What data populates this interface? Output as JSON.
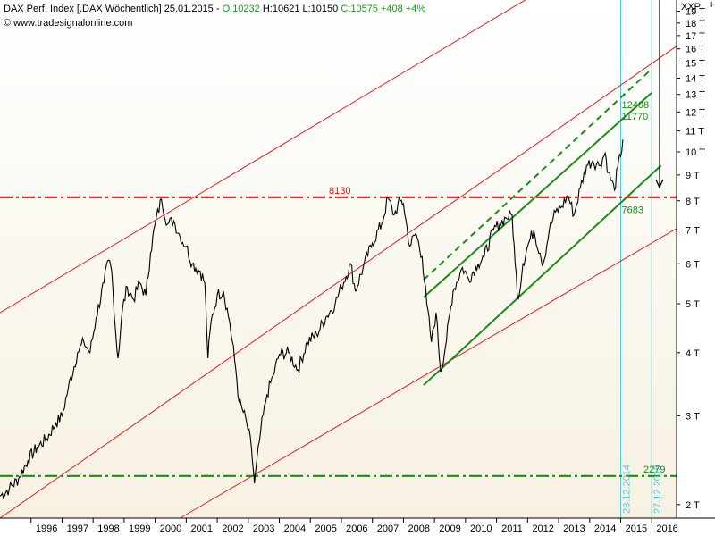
{
  "header": {
    "name": "DAX Perf. Index [.DAX  Wöchentlich] 25.01.2015 - ",
    "open": "O:10232",
    "high": "H:10621",
    "low": "L:10150",
    "close": "C:10575 +408 +4%",
    "source": "© www.tradesignalonline.com",
    "symbol": "XXP"
  },
  "colors": {
    "price": "#000000",
    "channel_outer": "#e02020",
    "resistance": "#e01010",
    "trend": "#1a8c1a",
    "support": "#1a8c1a",
    "vline": "#55c8d8"
  },
  "chart_data": {
    "type": "line",
    "title": "DAX Perf. Index [.DAX Wöchentlich]",
    "xlabel": "",
    "ylabel": "",
    "y_scale": "log",
    "xlim": [
      1995.0,
      2016.8
    ],
    "ylim": [
      1880,
      20000
    ],
    "x_ticks": [
      "1996",
      "1997",
      "1998",
      "1999",
      "2000",
      "2001",
      "2002",
      "2003",
      "2004",
      "2005",
      "2006",
      "2007",
      "2008",
      "2009",
      "2010",
      "2011",
      "2012",
      "2013",
      "2014",
      "2015",
      "2016"
    ],
    "y_ticks": [
      {
        "v": 19000,
        "label": "19 T"
      },
      {
        "v": 18000,
        "label": "18 T"
      },
      {
        "v": 17000,
        "label": "17 T"
      },
      {
        "v": 16000,
        "label": "16 T"
      },
      {
        "v": 15000,
        "label": "15 T"
      },
      {
        "v": 14000,
        "label": "14 T"
      },
      {
        "v": 13000,
        "label": "13 T"
      },
      {
        "v": 12000,
        "label": "12 T"
      },
      {
        "v": 11000,
        "label": "11 T"
      },
      {
        "v": 10000,
        "label": "10 T"
      },
      {
        "v": 9000,
        "label": "9 T"
      },
      {
        "v": 8000,
        "label": "8 T"
      },
      {
        "v": 7000,
        "label": "7 T"
      },
      {
        "v": 6000,
        "label": "6 T"
      },
      {
        "v": 5000,
        "label": "5 T"
      },
      {
        "v": 4000,
        "label": "4 T"
      },
      {
        "v": 3000,
        "label": "3 T"
      },
      {
        "v": 2000,
        "label": "2 T"
      }
    ],
    "series": [
      {
        "points": [
          [
            1995.0,
            2080
          ],
          [
            1995.3,
            2150
          ],
          [
            1995.6,
            2250
          ],
          [
            1995.9,
            2450
          ],
          [
            1996.2,
            2600
          ],
          [
            1996.5,
            2700
          ],
          [
            1996.8,
            2900
          ],
          [
            1997.0,
            3000
          ],
          [
            1997.2,
            3400
          ],
          [
            1997.5,
            4000
          ],
          [
            1997.7,
            4200
          ],
          [
            1997.9,
            4000
          ],
          [
            1998.1,
            4700
          ],
          [
            1998.35,
            5500
          ],
          [
            1998.5,
            6100
          ],
          [
            1998.6,
            5800
          ],
          [
            1998.75,
            4200
          ],
          [
            1998.8,
            3900
          ],
          [
            1998.95,
            4900
          ],
          [
            1999.1,
            5400
          ],
          [
            1999.3,
            5100
          ],
          [
            1999.5,
            5500
          ],
          [
            1999.7,
            5200
          ],
          [
            1999.85,
            6300
          ],
          [
            2000.0,
            7200
          ],
          [
            2000.2,
            8064
          ],
          [
            2000.4,
            7200
          ],
          [
            2000.6,
            7300
          ],
          [
            2000.8,
            6800
          ],
          [
            2001.0,
            6500
          ],
          [
            2001.2,
            6000
          ],
          [
            2001.45,
            5800
          ],
          [
            2001.6,
            5500
          ],
          [
            2001.7,
            3900
          ],
          [
            2001.8,
            4600
          ],
          [
            2002.0,
            5200
          ],
          [
            2002.2,
            5300
          ],
          [
            2002.4,
            4600
          ],
          [
            2002.6,
            3700
          ],
          [
            2002.7,
            3200
          ],
          [
            2002.8,
            3100
          ],
          [
            2002.95,
            2900
          ],
          [
            2003.1,
            2600
          ],
          [
            2003.2,
            2203
          ],
          [
            2003.4,
            2800
          ],
          [
            2003.6,
            3300
          ],
          [
            2003.8,
            3600
          ],
          [
            2004.0,
            3970
          ],
          [
            2004.3,
            4000
          ],
          [
            2004.6,
            3700
          ],
          [
            2004.9,
            4200
          ],
          [
            2005.2,
            4350
          ],
          [
            2005.5,
            4700
          ],
          [
            2005.8,
            5000
          ],
          [
            2006.0,
            5400
          ],
          [
            2006.3,
            6000
          ],
          [
            2006.45,
            5300
          ],
          [
            2006.7,
            5900
          ],
          [
            2007.0,
            6600
          ],
          [
            2007.3,
            7200
          ],
          [
            2007.5,
            8100
          ],
          [
            2007.7,
            7500
          ],
          [
            2007.9,
            8000
          ],
          [
            2008.0,
            7900
          ],
          [
            2008.2,
            6500
          ],
          [
            2008.4,
            6900
          ],
          [
            2008.6,
            6200
          ],
          [
            2008.75,
            5000
          ],
          [
            2008.9,
            4200
          ],
          [
            2009.05,
            4800
          ],
          [
            2009.2,
            3666
          ],
          [
            2009.35,
            4100
          ],
          [
            2009.6,
            5300
          ],
          [
            2009.9,
            5900
          ],
          [
            2010.1,
            5600
          ],
          [
            2010.4,
            6000
          ],
          [
            2010.6,
            6200
          ],
          [
            2010.9,
            7000
          ],
          [
            2011.1,
            7200
          ],
          [
            2011.3,
            7400
          ],
          [
            2011.5,
            7500
          ],
          [
            2011.6,
            6000
          ],
          [
            2011.7,
            5100
          ],
          [
            2011.85,
            6000
          ],
          [
            2012.0,
            6500
          ],
          [
            2012.2,
            7000
          ],
          [
            2012.4,
            6300
          ],
          [
            2012.5,
            6000
          ],
          [
            2012.7,
            7000
          ],
          [
            2012.9,
            7600
          ],
          [
            2013.1,
            7800
          ],
          [
            2013.3,
            8200
          ],
          [
            2013.5,
            7500
          ],
          [
            2013.7,
            8500
          ],
          [
            2013.9,
            9400
          ],
          [
            2014.1,
            9600
          ],
          [
            2014.3,
            9400
          ],
          [
            2014.5,
            9950
          ],
          [
            2014.6,
            9100
          ],
          [
            2014.8,
            8400
          ],
          [
            2014.9,
            9300
          ],
          [
            2015.0,
            9800
          ],
          [
            2015.07,
            10575
          ]
        ]
      }
    ],
    "channel_lines": [
      {
        "role": "outer-upper",
        "x": [
          1995.0,
          2012.5
        ],
        "y": [
          4800,
          21000
        ]
      },
      {
        "role": "outer-mid",
        "x": [
          1995.0,
          2016.8
        ],
        "y": [
          1880,
          16200
        ]
      },
      {
        "role": "outer-lower",
        "x": [
          2000.8,
          2016.8
        ],
        "y": [
          1880,
          7050
        ]
      },
      {
        "role": "trend-upper",
        "x": [
          2008.65,
          2016.0
        ],
        "y": [
          5150,
          13100
        ]
      },
      {
        "role": "trend-upper-dashed",
        "x": [
          2008.65,
          2016.0
        ],
        "y": [
          5580,
          14600
        ]
      },
      {
        "role": "trend-lower",
        "x": [
          2008.65,
          2016.3
        ],
        "y": [
          3450,
          9400
        ]
      }
    ],
    "horizontal_levels": [
      {
        "value": 8130,
        "label": "8130",
        "style": "resistance"
      },
      {
        "value": 2279,
        "label": "2279",
        "style": "support"
      }
    ],
    "annotations": [
      {
        "text": "12408",
        "x": 2015.0,
        "y": 12408
      },
      {
        "text": "11770",
        "x": 2015.0,
        "y": 11770
      },
      {
        "text": "7683",
        "x": 2015.0,
        "y": 7683
      }
    ],
    "vertical_markers": [
      {
        "label": "28.12.2014",
        "x": 2015.0
      },
      {
        "label": "27.12.2015",
        "x": 2016.0
      }
    ],
    "arrow": {
      "x": 2016.25,
      "y_from": 20000,
      "y_to": 8500
    }
  }
}
